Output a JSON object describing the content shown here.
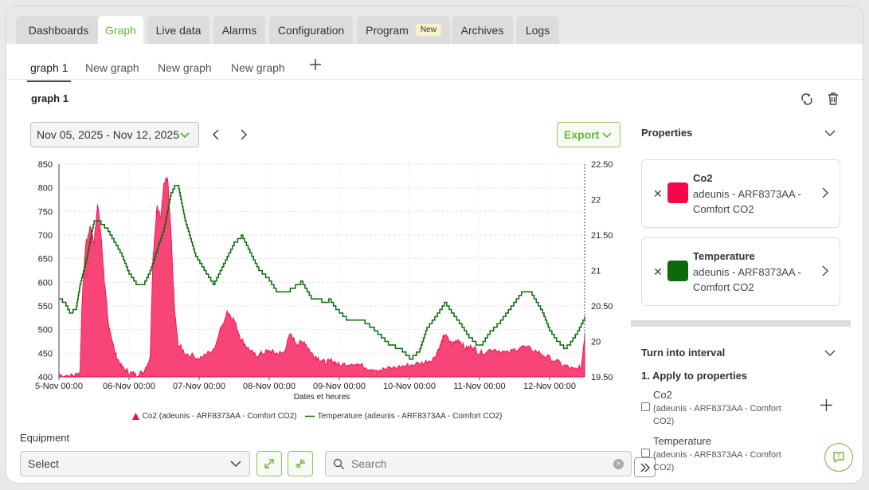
{
  "tabs": [
    {
      "label": "Dashboards",
      "active": false
    },
    {
      "label": "Graph",
      "active": true
    },
    {
      "label": "Live data",
      "active": false
    },
    {
      "label": "Alarms",
      "active": false
    },
    {
      "label": "Configuration",
      "active": false
    },
    {
      "label": "Program",
      "active": false,
      "badge": "New"
    },
    {
      "label": "Archives",
      "active": false
    },
    {
      "label": "Logs",
      "active": false
    }
  ],
  "subtabs": [
    "graph 1",
    "New graph",
    "New graph",
    "New graph"
  ],
  "graph_title": "graph 1",
  "toolbar": {
    "date_range": "Nov 05, 2025 - Nov 12, 2025",
    "export_label": "Export"
  },
  "icons": [
    "recycle-icon",
    "trash-icon",
    "chevron-down-icon",
    "chevron-left-icon",
    "chevron-right-icon",
    "plus-icon",
    "expand-icon",
    "shrink-icon",
    "search-icon",
    "clear-icon",
    "double-chevron-right-icon",
    "help-chat-icon",
    "close-icon"
  ],
  "colors": {
    "accent": "#6bb53f",
    "co2": "#f5074a",
    "temperature": "#0b6b0b"
  },
  "chart_data": {
    "type": "area",
    "xlabel": "Dates et heures",
    "x_ticks": [
      "5-Nov 00:00",
      "06-Nov 00:00",
      "07-Nov 00:00",
      "08-Nov 00:00",
      "09-Nov 00:00",
      "10-Nov 00:00",
      "11-Nov 00:00",
      "12-Nov 00:00"
    ],
    "y_left_ticks": [
      "850",
      "800",
      "750",
      "700",
      "650",
      "600",
      "550",
      "500",
      "450",
      "400"
    ],
    "y_right_ticks": [
      "22.50",
      "22",
      "21.50",
      "21",
      "20.50",
      "20",
      "19.50"
    ],
    "ylim_left": [
      400,
      850
    ],
    "ylim_right": [
      19.5,
      22.5
    ],
    "xlim": [
      0,
      7.5
    ],
    "grid": true,
    "legend_position": "bottom",
    "series": [
      {
        "name": "Co2 (adeunis - ARF8373AA - Comfort CO2)",
        "type": "area",
        "axis": "left",
        "color": "#f5074a",
        "x": [
          0,
          0.2,
          0.3,
          0.33,
          0.38,
          0.45,
          0.5,
          0.55,
          0.6,
          0.65,
          0.7,
          0.8,
          0.9,
          1.0,
          1.1,
          1.2,
          1.3,
          1.34,
          1.4,
          1.45,
          1.5,
          1.55,
          1.6,
          1.65,
          1.7,
          1.8,
          2.0,
          2.2,
          2.4,
          2.5,
          2.6,
          2.7,
          2.8,
          2.9,
          3.0,
          3.1,
          3.2,
          3.3,
          3.4,
          3.5,
          3.6,
          3.7,
          3.8,
          3.9,
          4.0,
          4.2,
          4.4,
          4.6,
          4.8,
          5.0,
          5.2,
          5.35,
          5.45,
          5.5,
          5.6,
          5.7,
          5.8,
          5.9,
          6.0,
          6.2,
          6.4,
          6.6,
          6.8,
          7.0,
          7.2,
          7.35,
          7.45,
          7.5
        ],
        "y": [
          405,
          402,
          410,
          560,
          680,
          720,
          680,
          770,
          700,
          600,
          520,
          450,
          420,
          410,
          405,
          410,
          440,
          650,
          760,
          740,
          810,
          820,
          700,
          540,
          470,
          450,
          440,
          455,
          540,
          520,
          480,
          460,
          445,
          450,
          455,
          450,
          450,
          490,
          470,
          475,
          450,
          440,
          430,
          435,
          425,
          430,
          420,
          415,
          420,
          425,
          430,
          440,
          470,
          490,
          470,
          480,
          460,
          465,
          450,
          460,
          450,
          465,
          455,
          440,
          425,
          415,
          420,
          490
        ]
      },
      {
        "name": "Temperature (adeunis - ARF8373AA - Comfort CO2)",
        "type": "step-line",
        "axis": "right",
        "color": "#0b6b0b",
        "x": [
          0,
          0.1,
          0.15,
          0.25,
          0.3,
          0.4,
          0.5,
          0.55,
          0.7,
          0.9,
          1.0,
          1.1,
          1.2,
          1.3,
          1.4,
          1.5,
          1.6,
          1.65,
          1.7,
          1.8,
          1.95,
          2.1,
          2.2,
          2.3,
          2.5,
          2.6,
          2.7,
          2.85,
          3.0,
          3.1,
          3.2,
          3.3,
          3.45,
          3.6,
          3.75,
          3.85,
          3.95,
          4.1,
          4.3,
          4.5,
          4.7,
          4.9,
          5.0,
          5.15,
          5.25,
          5.4,
          5.5,
          5.6,
          5.75,
          5.85,
          5.95,
          6.05,
          6.15,
          6.3,
          6.45,
          6.6,
          6.75,
          6.9,
          7.0,
          7.1,
          7.2,
          7.3,
          7.4,
          7.5
        ],
        "y": [
          20.6,
          20.5,
          20.4,
          20.5,
          20.8,
          21.2,
          21.7,
          21.7,
          21.55,
          21.2,
          20.95,
          20.8,
          20.8,
          21.0,
          21.3,
          21.6,
          22.1,
          22.2,
          22.2,
          21.7,
          21.2,
          20.95,
          20.8,
          21.0,
          21.4,
          21.5,
          21.3,
          21.0,
          20.85,
          20.7,
          20.7,
          20.75,
          20.85,
          20.6,
          20.55,
          20.6,
          20.45,
          20.3,
          20.3,
          20.15,
          19.95,
          19.85,
          19.75,
          19.9,
          20.2,
          20.4,
          20.55,
          20.4,
          20.2,
          20.05,
          19.95,
          20.0,
          20.15,
          20.3,
          20.5,
          20.7,
          20.65,
          20.4,
          20.15,
          20.0,
          19.9,
          20.0,
          20.15,
          20.35
        ]
      }
    ]
  },
  "equipment": {
    "label": "Equipment",
    "select_value": "Select",
    "search_placeholder": "Search"
  },
  "properties": {
    "title": "Properties",
    "items": [
      {
        "name": "Co2",
        "device": "adeunis - ARF8373AA - Comfort CO2",
        "color": "#f5074a"
      },
      {
        "name": "Temperature",
        "device": "adeunis - ARF8373AA - Comfort CO2",
        "color": "#0b6b0b"
      }
    ]
  },
  "interval": {
    "title": "Turn into interval",
    "step": "1. Apply to properties",
    "options": [
      {
        "name": "Co2",
        "device": "(adeunis - ARF8373AA - Comfort CO2)"
      },
      {
        "name": "Temperature",
        "device": "(adeunis - ARF8373AA - Comfort CO2)"
      }
    ]
  }
}
